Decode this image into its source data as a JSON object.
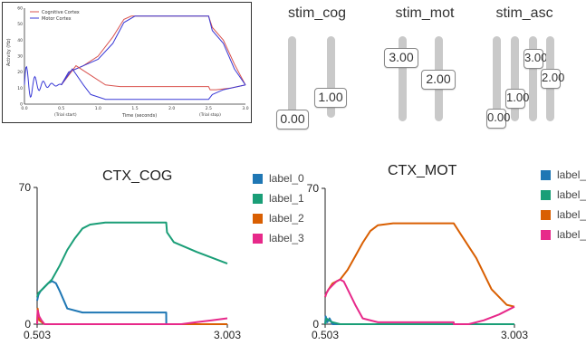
{
  "ref_plot": {
    "legend": [
      "Cognitive Cortex",
      "Motor Cortex"
    ],
    "ylabel": "Activity (Hz)",
    "xlabel": "Time (seconds)",
    "trial_start": "(Trial start)",
    "trial_stop": "(Trial stop)",
    "colors": {
      "cog": "#d9534f",
      "mot": "#3a3ad6"
    },
    "y_ticks": [
      "0",
      "10",
      "20",
      "30",
      "40",
      "50",
      "60"
    ],
    "x_ticks": [
      "0.0",
      "0.5",
      "1.0",
      "1.5",
      "2.0",
      "2.5",
      "3.0"
    ]
  },
  "sliders": {
    "stim_cog": {
      "title": "stim_cog",
      "values": [
        "0.00",
        "1.00"
      ]
    },
    "stim_mot": {
      "title": "stim_mot",
      "values": [
        "3.00",
        "2.00"
      ]
    },
    "stim_asc": {
      "title": "stim_asc",
      "values": [
        "0.00",
        "1.00",
        "3.00",
        "2.00"
      ]
    }
  },
  "legend_labels": [
    "label_0",
    "label_1",
    "label_2",
    "label_3"
  ],
  "legend_colors": [
    "#1f77b4",
    "#1a9e77",
    "#d95f02",
    "#e7298a"
  ],
  "chart_data": [
    {
      "type": "line",
      "title": "CTX_COG",
      "x_ticks": [
        "0.503",
        "3.003"
      ],
      "y_ticks": [
        "0",
        "70"
      ],
      "xlim": [
        0.503,
        3.003
      ],
      "ylim": [
        0,
        70
      ],
      "series": [
        {
          "name": "label_0",
          "color": "#1f77b4",
          "x": [
            0.503,
            0.52,
            0.55,
            0.6,
            0.65,
            0.7,
            0.75,
            0.8,
            0.9,
            1.1,
            1.5,
            2.0,
            2.1,
            2.2,
            2.201,
            2.5,
            3.003
          ],
          "y": [
            12,
            15,
            17,
            19,
            21,
            22,
            21,
            17,
            8,
            6,
            6,
            6,
            6,
            6,
            0,
            0,
            0
          ]
        },
        {
          "name": "label_1",
          "color": "#1a9e77",
          "x": [
            0.503,
            0.52,
            0.55,
            0.6,
            0.7,
            0.8,
            0.9,
            1.0,
            1.1,
            1.2,
            1.4,
            1.8,
            2.1,
            2.2,
            2.21,
            2.3,
            2.6,
            3.003
          ],
          "y": [
            14,
            16,
            17,
            19,
            23,
            30,
            38,
            44,
            49,
            51,
            52,
            52,
            52,
            52,
            47,
            42,
            37,
            31
          ]
        },
        {
          "name": "label_2",
          "color": "#d95f02",
          "x": [
            0.503,
            0.51,
            0.53,
            0.6,
            0.8,
            1.5,
            2.1,
            2.2,
            2.5,
            3.003
          ],
          "y": [
            0,
            8,
            2,
            0,
            0,
            0,
            0,
            0,
            0,
            0
          ]
        },
        {
          "name": "label_3",
          "color": "#e7298a",
          "x": [
            0.503,
            0.51,
            0.53,
            0.56,
            0.6,
            0.8,
            1.5,
            2.2,
            2.4,
            2.6,
            2.8,
            3.003
          ],
          "y": [
            0,
            7,
            4,
            2,
            0,
            0,
            0,
            0,
            0,
            1,
            2,
            3
          ]
        }
      ]
    },
    {
      "type": "line",
      "title": "CTX_MOT",
      "x_ticks": [
        "0.503",
        "3.003"
      ],
      "y_ticks": [
        "0",
        "70"
      ],
      "xlim": [
        0.503,
        3.003
      ],
      "ylim": [
        0,
        70
      ],
      "series": [
        {
          "name": "label_0",
          "color": "#1f77b4",
          "x": [
            0.503,
            0.51,
            0.53,
            0.56,
            0.6,
            0.65,
            0.8,
            1.5,
            2.2,
            2.5,
            3.003
          ],
          "y": [
            0,
            4,
            1,
            3,
            0,
            0,
            0,
            0,
            0,
            0,
            0
          ]
        },
        {
          "name": "label_1",
          "color": "#1a9e77",
          "x": [
            0.503,
            0.52,
            0.55,
            0.6,
            0.7,
            0.8,
            1.0,
            1.5,
            2.2,
            2.6,
            3.003
          ],
          "y": [
            0,
            3,
            2,
            1,
            0,
            0,
            0,
            0,
            0,
            0,
            0
          ]
        },
        {
          "name": "label_2",
          "color": "#d95f02",
          "x": [
            0.503,
            0.52,
            0.55,
            0.6,
            0.7,
            0.8,
            0.9,
            1.0,
            1.1,
            1.2,
            1.4,
            1.8,
            2.1,
            2.2,
            2.3,
            2.5,
            2.7,
            2.9,
            3.003
          ],
          "y": [
            14,
            16,
            18,
            21,
            23,
            28,
            35,
            42,
            48,
            51,
            52,
            52,
            52,
            52,
            46,
            34,
            18,
            10,
            9
          ]
        },
        {
          "name": "label_3",
          "color": "#e7298a",
          "x": [
            0.503,
            0.52,
            0.55,
            0.6,
            0.65,
            0.7,
            0.75,
            0.8,
            0.9,
            1.0,
            1.2,
            1.5,
            2.2,
            2.201,
            2.4,
            2.6,
            2.8,
            3.003
          ],
          "y": [
            14,
            16,
            18,
            20,
            22,
            23,
            22,
            18,
            10,
            3,
            1,
            1,
            1,
            0,
            0,
            2,
            5,
            9
          ]
        }
      ]
    }
  ]
}
